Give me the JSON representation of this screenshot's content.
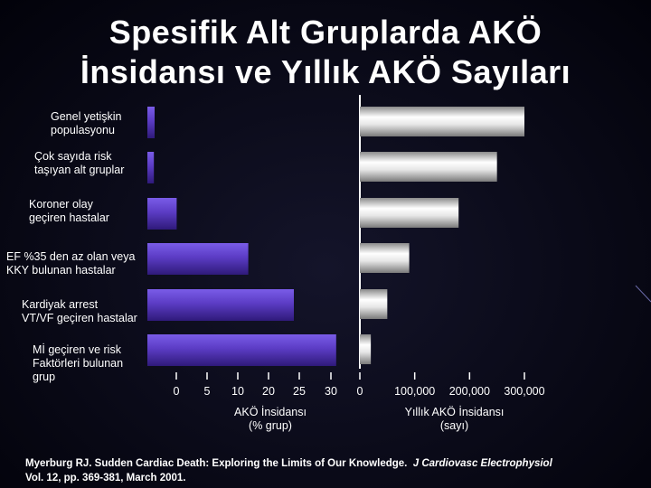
{
  "slide": {
    "title_line1": "Spesifik Alt Gruplarda AKÖ",
    "title_line2": "İnsidansı ve Yıllık AKÖ Sayıları",
    "citation_line1_text": "Myerburg RJ. Sudden Cardiac Death: Exploring the Limits of Our Knowledge.",
    "citation_journal": "J Cardiovasc Electrophysiol",
    "citation_line2": "Vol. 12, pp. 369-381, March 2001."
  },
  "categories_display": [
    [
      "Genel yetişkin",
      "populasyonu"
    ],
    [
      "Çok sayıda risk",
      "taşıyan alt gruplar"
    ],
    [
      "Koroner olay",
      "geçiren hastalar"
    ],
    [
      "EF %35 den az olan veya",
      "KKY bulunan hastalar"
    ],
    [
      "Kardiyak arrest",
      "VT/VF geçiren hastalar"
    ],
    [
      "Mİ geçiren ve risk",
      "Faktörleri bulunan",
      "grup"
    ]
  ],
  "chart_data": [
    {
      "type": "bar",
      "orientation": "horizontal",
      "categories": [
        "Genel yetişkin populasyonu",
        "Çok sayıda risk taşıyan alt gruplar",
        "Koroner olay geçiren hastalar",
        "EF %35 den az olan veya KKY bulunan hastalar",
        "Kardiyak arrest VT/VF geçiren hastalar",
        "Mİ geçiren ve risk Faktörleri bulunan grup"
      ],
      "values": [
        0.2,
        1,
        4.5,
        15.5,
        22.5,
        29
      ],
      "xlabel": "AKÖ İnsidansı (% grup)",
      "tick_labels": [
        "0",
        "5",
        "10",
        "20",
        "25",
        "30"
      ],
      "xlim": [
        0,
        30
      ],
      "bar_color": "#5b3cc4"
    },
    {
      "type": "bar",
      "orientation": "horizontal",
      "categories": [
        "Genel yetişkin populasyonu",
        "Çok sayıda risk taşıyan alt gruplar",
        "Koroner olay geçiren hastalar",
        "EF %35 den az olan veya KKY bulunan hastalar",
        "Kardiyak arrest VT/VF geçiren hastalar",
        "Mİ geçiren ve risk Faktörleri bulunan grup"
      ],
      "values": [
        300000,
        250000,
        180000,
        90000,
        50000,
        20000
      ],
      "xlabel": "Yıllık AKÖ İnsidansı (sayı)",
      "tick_labels": [
        "0",
        "100,000",
        "200,000",
        "300,000"
      ],
      "xlim": [
        0,
        300000
      ],
      "bar_color": "#d8d8d8"
    }
  ]
}
